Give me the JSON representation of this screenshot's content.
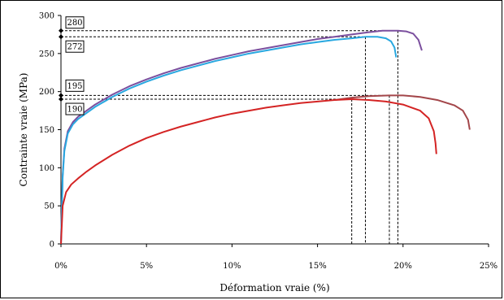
{
  "chart_data": {
    "type": "line",
    "title": "",
    "xlabel": "Déformation vraie (%)",
    "ylabel": "Contrainte vraie (MPa)",
    "xlim": [
      0,
      25
    ],
    "ylim": [
      0,
      300
    ],
    "x_ticks": [
      "0%",
      "5%",
      "10%",
      "15%",
      "20%",
      "25%"
    ],
    "y_ticks": [
      "0",
      "50",
      "100",
      "150",
      "200",
      "250",
      "300"
    ],
    "grid": false,
    "legend": "none",
    "series": [
      {
        "color": "#7b4f9e",
        "x": [
          0,
          0.1,
          0.2,
          0.4,
          0.7,
          1.0,
          1.5,
          2,
          3,
          4,
          5,
          6,
          7,
          8,
          9,
          10,
          11,
          12,
          13,
          14,
          15,
          16,
          17,
          18,
          18.8,
          19.3,
          19.7,
          20.2,
          20.6,
          20.9,
          21.1
        ],
        "y": [
          0,
          90,
          125,
          148,
          160,
          167,
          175,
          183,
          196,
          207,
          216,
          224,
          231,
          237,
          243,
          248,
          253,
          257,
          261,
          265,
          269,
          272,
          275,
          278,
          280,
          280,
          280,
          279,
          276,
          268,
          254
        ]
      },
      {
        "color": "#29a8e0",
        "x": [
          0,
          0.1,
          0.2,
          0.4,
          0.7,
          1.0,
          1.5,
          2,
          3,
          4,
          5,
          6,
          7,
          8,
          9,
          10,
          11,
          12,
          13,
          14,
          15,
          16,
          17,
          17.8,
          18.5,
          19.0,
          19.3,
          19.5,
          19.6
        ],
        "y": [
          0,
          88,
          122,
          145,
          157,
          164,
          172,
          180,
          193,
          204,
          213,
          221,
          228,
          234,
          240,
          245,
          250,
          254,
          258,
          262,
          265,
          268,
          270,
          272,
          272,
          270,
          266,
          258,
          245
        ]
      },
      {
        "color": "#a3464a",
        "x": [
          16,
          17,
          18,
          19.2,
          20,
          21,
          22,
          23,
          23.5,
          23.8,
          23.9
        ],
        "y": [
          189,
          192,
          194,
          195,
          195,
          193,
          189,
          182,
          175,
          163,
          150
        ]
      },
      {
        "color": "#d42424",
        "x": [
          0,
          0.1,
          0.3,
          0.6,
          1,
          1.5,
          2,
          3,
          4,
          5,
          6,
          7,
          8,
          9,
          10,
          11,
          12,
          13,
          14,
          15,
          16,
          17,
          18,
          19,
          20,
          21,
          21.5,
          21.8,
          21.9,
          21.95
        ],
        "y": [
          0,
          50,
          68,
          78,
          86,
          95,
          103,
          117,
          129,
          139,
          147,
          154,
          160,
          166,
          171,
          175,
          179,
          182,
          185,
          187,
          189,
          190,
          189,
          187,
          183,
          175,
          165,
          148,
          132,
          118
        ]
      }
    ],
    "annotations": [
      {
        "label": "280",
        "y": 280,
        "x_end": 19.7
      },
      {
        "label": "272",
        "y": 272,
        "x_end": 17.8
      },
      {
        "label": "195",
        "y": 195,
        "x_end": 19.2
      },
      {
        "label": "190",
        "y": 190,
        "x_end": 17.0
      }
    ]
  }
}
